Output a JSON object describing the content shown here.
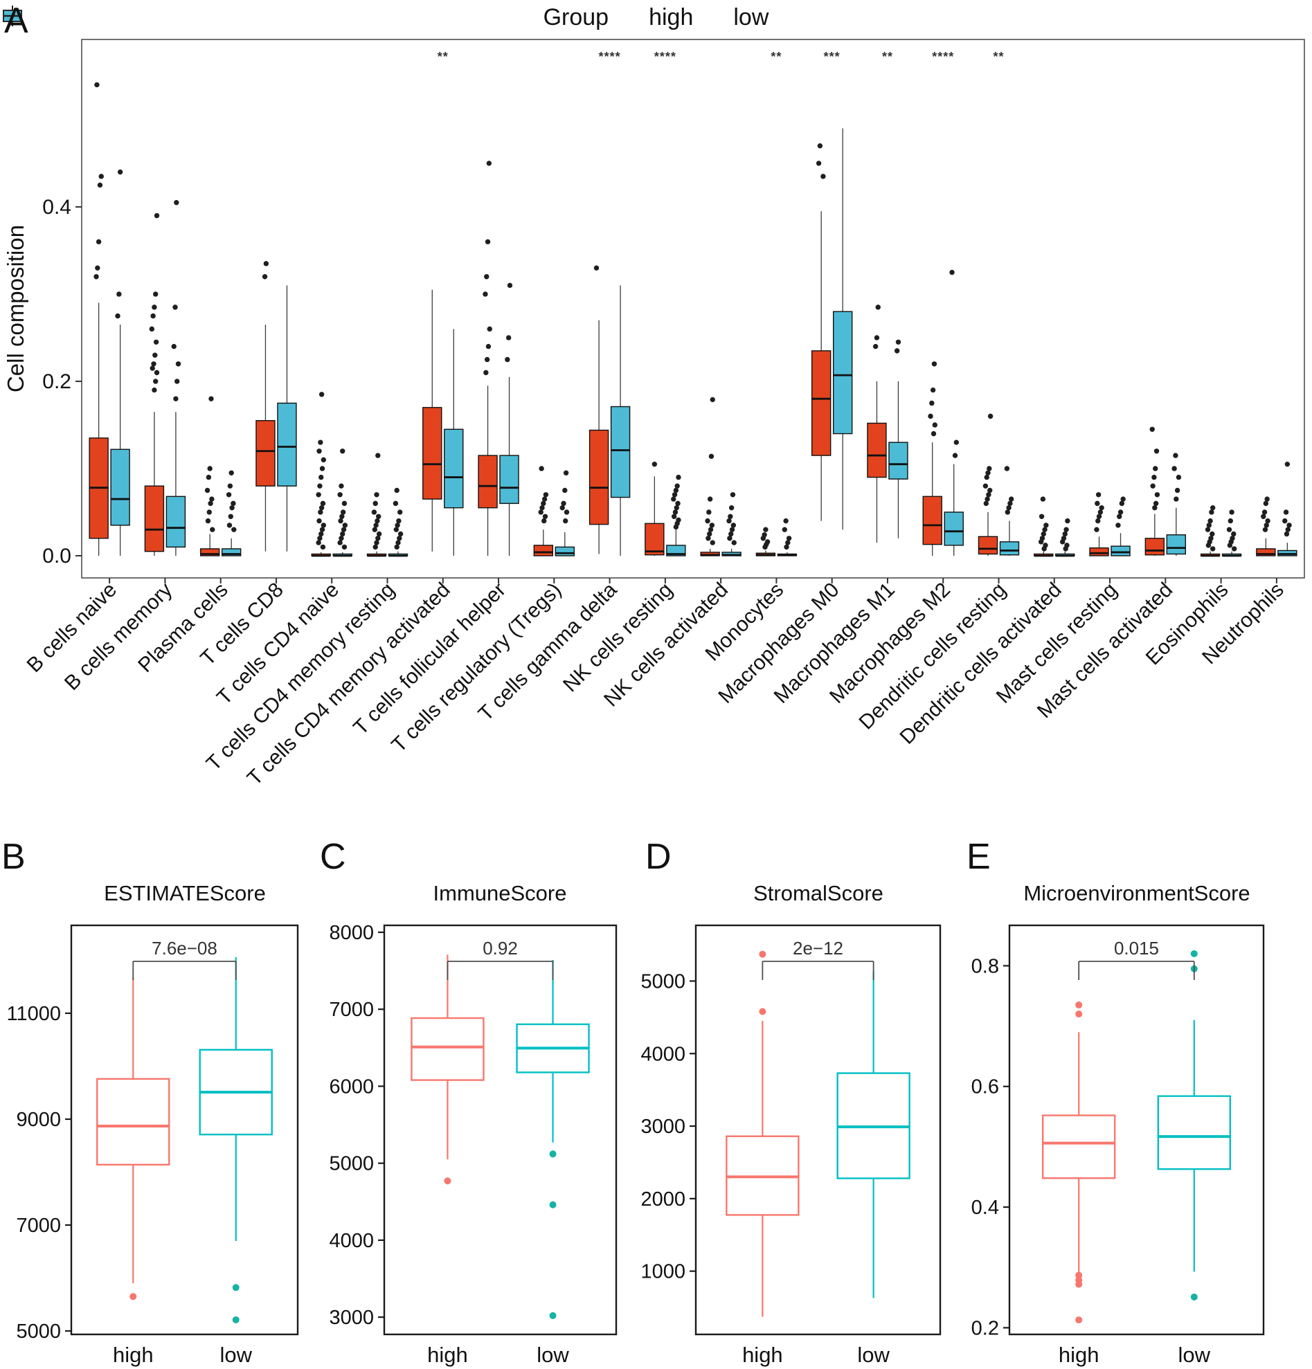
{
  "legend": {
    "title": "Group",
    "items": [
      {
        "label": "high",
        "color": "#E2431E"
      },
      {
        "label": "low",
        "color": "#4DBBD5"
      }
    ]
  },
  "letters": [
    "A",
    "B",
    "C",
    "D",
    "E"
  ],
  "chart_data": [
    {
      "id": "A",
      "type": "grouped_boxplot",
      "ylabel": "Cell composition",
      "ylim": [
        -0.0254,
        0.592
      ],
      "yticks": [
        0,
        0.2,
        0.4
      ],
      "ytick_labels": [
        "0.0",
        "0.2",
        "0.4"
      ],
      "legend_position": "top",
      "grid": false,
      "categories": [
        "B cells naive",
        "B cells memory",
        "Plasma cells",
        "T cells CD8",
        "T cells CD4 naive",
        "T cells CD4 memory resting",
        "T cells CD4 memory activated",
        "T cells follicular helper",
        "T cells regulatory (Tregs)",
        "T cells gamma delta",
        "NK cells resting",
        "NK cells activated",
        "Monocytes",
        "Macrophages M0",
        "Macrophages M1",
        "Macrophages M2",
        "Dendritic cells resting",
        "Dendritic cells activated",
        "Mast cells resting",
        "Mast cells activated",
        "Eosinophils",
        "Neutrophils"
      ],
      "significance": [
        "",
        "",
        "",
        "",
        "",
        "",
        "**",
        "",
        "",
        "****",
        "****",
        "",
        "**",
        "***",
        "**",
        "****",
        "**",
        "",
        "",
        "",
        "",
        ""
      ],
      "series": [
        {
          "name": "high",
          "color": "#E2431E",
          "boxes": [
            [
              0,
              0.02,
              0.078,
              0.135,
              0.29
            ],
            [
              0,
              0.005,
              0.03,
              0.08,
              0.165
            ],
            [
              0,
              0,
              0.002,
              0.008,
              0.025
            ],
            [
              0.005,
              0.08,
              0.12,
              0.155,
              0.265
            ],
            [
              0,
              0,
              0,
              0.002,
              0.004
            ],
            [
              0,
              0,
              0,
              0.002,
              0.005
            ],
            [
              0.005,
              0.065,
              0.105,
              0.17,
              0.305
            ],
            [
              0,
              0.055,
              0.08,
              0.115,
              0.195
            ],
            [
              0,
              0,
              0.004,
              0.012,
              0.03
            ],
            [
              0.002,
              0.036,
              0.078,
              0.144,
              0.27
            ],
            [
              0,
              0.001,
              0.005,
              0.037,
              0.091
            ],
            [
              0,
              0,
              0.001,
              0.004,
              0.008
            ],
            [
              0,
              0,
              0.001,
              0.003,
              0.006
            ],
            [
              0.04,
              0.115,
              0.18,
              0.235,
              0.395
            ],
            [
              0.015,
              0.09,
              0.115,
              0.152,
              0.2
            ],
            [
              0,
              0.013,
              0.035,
              0.068,
              0.13
            ],
            [
              0,
              0.002,
              0.008,
              0.022,
              0.05
            ],
            [
              0,
              0,
              0,
              0.002,
              0.005
            ],
            [
              0,
              0,
              0.003,
              0.009,
              0.022
            ],
            [
              0,
              0.001,
              0.006,
              0.02,
              0.048
            ],
            [
              0,
              0,
              0,
              0.002,
              0.005
            ],
            [
              0,
              0,
              0.002,
              0.008,
              0.02
            ]
          ],
          "outliers": [
            [
              0.32,
              0.33,
              0.36,
              0.425,
              0.435,
              0.54
            ],
            [
              0.19,
              0.2,
              0.21,
              0.215,
              0.22,
              0.23,
              0.245,
              0.26,
              0.275,
              0.285,
              0.3,
              0.39
            ],
            [
              0.03,
              0.04,
              0.05,
              0.06,
              0.065,
              0.075,
              0.09,
              0.1,
              0.18
            ],
            [
              0.32,
              0.335
            ],
            [
              0.01,
              0.015,
              0.02,
              0.025,
              0.03,
              0.035,
              0.04,
              0.05,
              0.055,
              0.06,
              0.07,
              0.08,
              0.09,
              0.1,
              0.11,
              0.12,
              0.13,
              0.185
            ],
            [
              0.01,
              0.015,
              0.02,
              0.025,
              0.03,
              0.035,
              0.04,
              0.045,
              0.05,
              0.06,
              0.07,
              0.115
            ],
            [],
            [
              0.21,
              0.225,
              0.24,
              0.26,
              0.3,
              0.32,
              0.36,
              0.45
            ],
            [
              0.04,
              0.045,
              0.05,
              0.055,
              0.06,
              0.065,
              0.07,
              0.1
            ],
            [
              0.33
            ],
            [
              0.105
            ],
            [
              0.015,
              0.02,
              0.025,
              0.03,
              0.035,
              0.04,
              0.05,
              0.065,
              0.114,
              0.179
            ],
            [
              0.01,
              0.013,
              0.016,
              0.02,
              0.024,
              0.03
            ],
            [
              0.435,
              0.45,
              0.47
            ],
            [
              0.24,
              0.25,
              0.285
            ],
            [
              0.14,
              0.15,
              0.16,
              0.175,
              0.19,
              0.22
            ],
            [
              0.06,
              0.065,
              0.07,
              0.075,
              0.08,
              0.09,
              0.095,
              0.1,
              0.16
            ],
            [
              0.008,
              0.012,
              0.016,
              0.02,
              0.025,
              0.03,
              0.035,
              0.045,
              0.065
            ],
            [
              0.03,
              0.04,
              0.045,
              0.05,
              0.055,
              0.06,
              0.07
            ],
            [
              0.055,
              0.06,
              0.07,
              0.08,
              0.09,
              0.1,
              0.12,
              0.145
            ],
            [
              0.008,
              0.012,
              0.016,
              0.02,
              0.025,
              0.03,
              0.035,
              0.04,
              0.05,
              0.055
            ],
            [
              0.03,
              0.035,
              0.04,
              0.045,
              0.05,
              0.06,
              0.065
            ]
          ]
        },
        {
          "name": "low",
          "color": "#4DBBD5",
          "boxes": [
            [
              0,
              0.035,
              0.065,
              0.122,
              0.265
            ],
            [
              0,
              0.01,
              0.032,
              0.068,
              0.165
            ],
            [
              0,
              0,
              0.002,
              0.008,
              0.02
            ],
            [
              0.005,
              0.08,
              0.125,
              0.175,
              0.31
            ],
            [
              0,
              0,
              0,
              0.002,
              0.004
            ],
            [
              0,
              0,
              0,
              0.002,
              0.005
            ],
            [
              0,
              0.055,
              0.09,
              0.145,
              0.26
            ],
            [
              0,
              0.06,
              0.078,
              0.115,
              0.205
            ],
            [
              0,
              0,
              0.003,
              0.01,
              0.027
            ],
            [
              0,
              0.067,
              0.121,
              0.171,
              0.31
            ],
            [
              0,
              0,
              0.002,
              0.012,
              0.03
            ],
            [
              0,
              0,
              0.001,
              0.004,
              0.008
            ],
            [
              0,
              0,
              0.001,
              0.002,
              0.004
            ],
            [
              0.03,
              0.14,
              0.207,
              0.28,
              0.49
            ],
            [
              0.02,
              0.088,
              0.105,
              0.13,
              0.2
            ],
            [
              0,
              0.012,
              0.028,
              0.05,
              0.105
            ],
            [
              0,
              0.001,
              0.006,
              0.016,
              0.04
            ],
            [
              0,
              0,
              0,
              0.002,
              0.005
            ],
            [
              0,
              0,
              0.004,
              0.011,
              0.026
            ],
            [
              0,
              0.002,
              0.009,
              0.024,
              0.055
            ],
            [
              0,
              0,
              0,
              0.002,
              0.005
            ],
            [
              0,
              0,
              0.002,
              0.006,
              0.015
            ]
          ],
          "outliers": [
            [
              0.275,
              0.3,
              0.44
            ],
            [
              0.18,
              0.2,
              0.22,
              0.24,
              0.285,
              0.405
            ],
            [
              0.03,
              0.035,
              0.045,
              0.055,
              0.06,
              0.07,
              0.08,
              0.095
            ],
            [],
            [
              0.01,
              0.015,
              0.02,
              0.025,
              0.03,
              0.035,
              0.04,
              0.045,
              0.05,
              0.06,
              0.07,
              0.08,
              0.12
            ],
            [
              0.01,
              0.015,
              0.02,
              0.025,
              0.03,
              0.035,
              0.04,
              0.05,
              0.06,
              0.075
            ],
            [],
            [
              0.225,
              0.25,
              0.31
            ],
            [
              0.04,
              0.05,
              0.055,
              0.06,
              0.075,
              0.095
            ],
            [],
            [
              0.033,
              0.037,
              0.041,
              0.045,
              0.05,
              0.055,
              0.06,
              0.065,
              0.07,
              0.075,
              0.08,
              0.09
            ],
            [
              0.015,
              0.02,
              0.025,
              0.03,
              0.035,
              0.04,
              0.045,
              0.055,
              0.07
            ],
            [
              0.01,
              0.015,
              0.02,
              0.03,
              0.04
            ],
            [],
            [
              0.235,
              0.245
            ],
            [
              0.115,
              0.13,
              0.325
            ],
            [
              0.05,
              0.055,
              0.06,
              0.065,
              0.1
            ],
            [
              0.008,
              0.012,
              0.016,
              0.02,
              0.025,
              0.03,
              0.04
            ],
            [
              0.035,
              0.045,
              0.05,
              0.06,
              0.065
            ],
            [
              0.065,
              0.075,
              0.09,
              0.1,
              0.115
            ],
            [
              0.008,
              0.012,
              0.016,
              0.02,
              0.025,
              0.03,
              0.04,
              0.05
            ],
            [
              0.025,
              0.03,
              0.035,
              0.04,
              0.05,
              0.105
            ]
          ]
        }
      ]
    },
    {
      "id": "B",
      "type": "boxplot",
      "title": "ESTIMATEScore",
      "pvalue": "7.6e−08",
      "ylim": [
        4935,
        12660
      ],
      "yticks": [
        5000,
        7000,
        9000,
        11000
      ],
      "ytick_labels": [
        "5000",
        "7000",
        "9000",
        "11000"
      ],
      "groups": [
        {
          "label": "high",
          "color": "#F8766D",
          "dot_color": "#F8766D",
          "box": [
            5900,
            8140,
            8870,
            9760,
            11670
          ],
          "outliers": [
            5650
          ]
        },
        {
          "label": "low",
          "color": "#00BFC4",
          "dot_color": "#14B3A4",
          "box": [
            6700,
            8710,
            9510,
            10310,
            12060
          ],
          "outliers": [
            5820,
            5210
          ]
        }
      ]
    },
    {
      "id": "C",
      "type": "boxplot",
      "title": "ImmuneScore",
      "pvalue": "0.92",
      "ylim": [
        2776,
        8090
      ],
      "yticks": [
        3000,
        4000,
        5000,
        6000,
        7000,
        8000
      ],
      "ytick_labels": [
        "3000",
        "4000",
        "5000",
        "6000",
        "7000",
        "8000"
      ],
      "groups": [
        {
          "label": "high",
          "color": "#F8766D",
          "dot_color": "#F8766D",
          "box": [
            5050,
            6080,
            6510,
            6885,
            7710
          ],
          "outliers": [
            4770
          ]
        },
        {
          "label": "low",
          "color": "#00BFC4",
          "dot_color": "#14B3A4",
          "box": [
            5270,
            6180,
            6495,
            6805,
            7640
          ],
          "outliers": [
            5120,
            4460,
            3020
          ]
        }
      ]
    },
    {
      "id": "D",
      "type": "boxplot",
      "title": "StromalScore",
      "pvalue": "2e−12",
      "ylim": [
        128,
        5768
      ],
      "yticks": [
        1000,
        2000,
        3000,
        4000,
        5000
      ],
      "ytick_labels": [
        "1000",
        "2000",
        "3000",
        "4000",
        "5000"
      ],
      "groups": [
        {
          "label": "high",
          "color": "#F8766D",
          "dot_color": "#F8766D",
          "box": [
            370,
            1775,
            2300,
            2860,
            4450
          ],
          "outliers": [
            5370,
            4580
          ]
        },
        {
          "label": "low",
          "color": "#00BFC4",
          "dot_color": "#14B3A4",
          "box": [
            630,
            2280,
            2990,
            3730,
            5140
          ],
          "outliers": []
        }
      ]
    },
    {
      "id": "E",
      "type": "boxplot",
      "title": "MicroenvironmentScore",
      "pvalue": "0.015",
      "ylim": [
        0.189,
        0.867
      ],
      "yticks": [
        0.2,
        0.4,
        0.6,
        0.8
      ],
      "ytick_labels": [
        "0.2",
        "0.4",
        "0.6",
        "0.8"
      ],
      "groups": [
        {
          "label": "high",
          "color": "#F8766D",
          "dot_color": "#F8766D",
          "box": [
            0.29,
            0.448,
            0.506,
            0.552,
            0.69
          ],
          "outliers": [
            0.735,
            0.72,
            0.287,
            0.279,
            0.272,
            0.213
          ]
        },
        {
          "label": "low",
          "color": "#00BFC4",
          "dot_color": "#14B3A4",
          "box": [
            0.293,
            0.463,
            0.517,
            0.584,
            0.71
          ],
          "outliers": [
            0.82,
            0.795,
            0.251
          ]
        }
      ]
    }
  ]
}
